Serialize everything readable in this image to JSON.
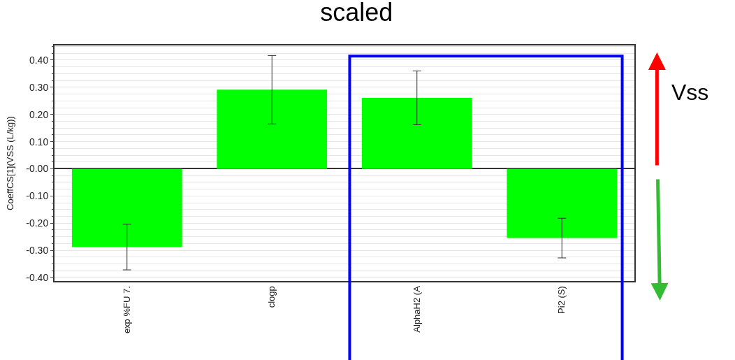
{
  "chart_data": {
    "type": "bar",
    "title": "scaled",
    "ylabel": "CoeffCS[1](VSS (L/kg))",
    "categories": [
      "exp %FU 7.",
      "clogp",
      "AlphaH2 (A",
      "Pi2 (S)"
    ],
    "values": [
      -0.288,
      0.291,
      0.261,
      -0.255
    ],
    "errors": [
      0.084,
      0.126,
      0.099,
      0.073
    ],
    "color": "#00ff00",
    "ylim": [
      -0.413,
      0.454
    ],
    "yticks": [
      {
        "value": -0.4,
        "label": "-0.40"
      },
      {
        "value": -0.3,
        "label": "-0.30"
      },
      {
        "value": -0.2,
        "label": "-0.20"
      },
      {
        "value": -0.1,
        "label": "-0.10"
      },
      {
        "value": 0,
        "label": "-0.00"
      },
      {
        "value": 0.1,
        "label": "0.10"
      },
      {
        "value": 0.2,
        "label": "0.20"
      },
      {
        "value": 0.3,
        "label": "0.30"
      },
      {
        "value": 0.4,
        "label": "0.40"
      }
    ],
    "grid": "y",
    "annotations": [
      "Vss"
    ]
  }
}
